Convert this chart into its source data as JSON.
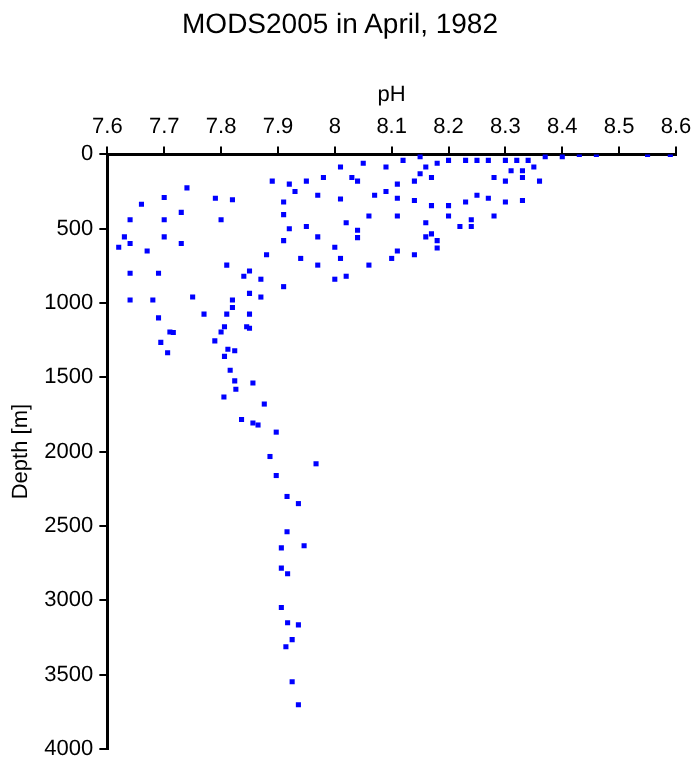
{
  "chart_data": {
    "type": "scatter",
    "title": "MODS2005 in April, 1982",
    "xlabel": "pH",
    "ylabel": "Depth [m]",
    "xlim": [
      7.6,
      8.6
    ],
    "xticks": [
      7.6,
      7.7,
      7.8,
      7.9,
      8,
      8.1,
      8.2,
      8.3,
      8.4,
      8.5,
      8.6
    ],
    "ylim": [
      4000,
      0
    ],
    "yticks": [
      0,
      500,
      1000,
      1500,
      2000,
      2500,
      3000,
      3500,
      4000
    ],
    "grid": false,
    "legend": false,
    "marker": "square",
    "series": [
      {
        "color": "#0000ff",
        "x": [
          8.59,
          8.55,
          8.46,
          8.43,
          8.4,
          8.37,
          8.34,
          8.32,
          8.3,
          8.27,
          8.25,
          8.23,
          8.2,
          8.35,
          8.33,
          8.31,
          8.36,
          8.33,
          8.3,
          8.28,
          8.18,
          8.16,
          8.15,
          8.12,
          8.09,
          8.05,
          8.01,
          8.17,
          8.15,
          8.14,
          8.11,
          8.09,
          8.03,
          8.04,
          7.98,
          7.95,
          7.92,
          7.89,
          7.74,
          7.97,
          7.93,
          7.91,
          8.3,
          8.33,
          8.27,
          8.25,
          8.23,
          8.17,
          8.2,
          8.14,
          8.11,
          8.07,
          8.01,
          7.82,
          7.79,
          7.7,
          7.66,
          8.28,
          8.24,
          8.24,
          8.22,
          8.2,
          8.16,
          8.11,
          8.06,
          8.02,
          7.95,
          7.97,
          7.92,
          7.91,
          7.8,
          7.73,
          7.7,
          7.64,
          7.63,
          7.64,
          7.62,
          7.73,
          7.7,
          8.18,
          8.18,
          8.17,
          8.16,
          8.14,
          8.11,
          8.1,
          8.06,
          8.04,
          8.04,
          8,
          8.01,
          7.97,
          8,
          8.02,
          7.94,
          7.91,
          7.88,
          7.87,
          7.91,
          7.85,
          7.84,
          7.81,
          7.85,
          7.87,
          7.82,
          7.82,
          7.77,
          7.75,
          7.69,
          7.64,
          7.64,
          7.68,
          7.69,
          7.71,
          7.67,
          7.85,
          7.81,
          7.85,
          7.8,
          7.716,
          7.694,
          7.706,
          7.789,
          7.806,
          7.845,
          7.812,
          7.824,
          7.806,
          7.816,
          7.824,
          7.856,
          7.826,
          7.805,
          7.876,
          7.836,
          7.856,
          7.865,
          7.897,
          7.886,
          7.967,
          7.897,
          7.916,
          7.936,
          7.916,
          7.946,
          7.906,
          7.906,
          7.917,
          7.906,
          7.917,
          7.936,
          7.925,
          7.914,
          7.925,
          7.936
        ],
        "values": [
          0,
          0,
          0,
          0,
          15,
          15,
          40,
          40,
          40,
          40,
          40,
          40,
          40,
          85,
          110,
          110,
          180,
          155,
          180,
          155,
          60,
          85,
          15,
          40,
          85,
          60,
          85,
          155,
          130,
          180,
          200,
          250,
          155,
          180,
          155,
          180,
          200,
          180,
          225,
          275,
          250,
          320,
          320,
          310,
          295,
          275,
          320,
          345,
          345,
          310,
          295,
          275,
          300,
          305,
          295,
          290,
          335,
          415,
          440,
          485,
          485,
          415,
          460,
          415,
          415,
          460,
          485,
          555,
          500,
          405,
          440,
          390,
          440,
          440,
          555,
          600,
          625,
          600,
          555,
          580,
          630,
          535,
          555,
          675,
          650,
          700,
          745,
          510,
          560,
          625,
          700,
          745,
          840,
          820,
          700,
          580,
          675,
          840,
          890,
          785,
          820,
          745,
          935,
          960,
          980,
          1030,
          1075,
          960,
          800,
          800,
          980,
          980,
          1100,
          1195,
          650,
          1075,
          1075,
          1170,
          1195,
          1198,
          1265,
          1335,
          1255,
          1160,
          1160,
          1311,
          1321,
          1359,
          1453,
          1524,
          1538,
          1580,
          1633,
          1680,
          1784,
          1807,
          1821,
          1869,
          2033,
          2082,
          2161,
          2302,
          2350,
          2539,
          2634,
          2648,
          2784,
          2822,
          3049,
          3152,
          3166,
          3265,
          3313,
          3549,
          3704
        ]
      }
    ]
  }
}
